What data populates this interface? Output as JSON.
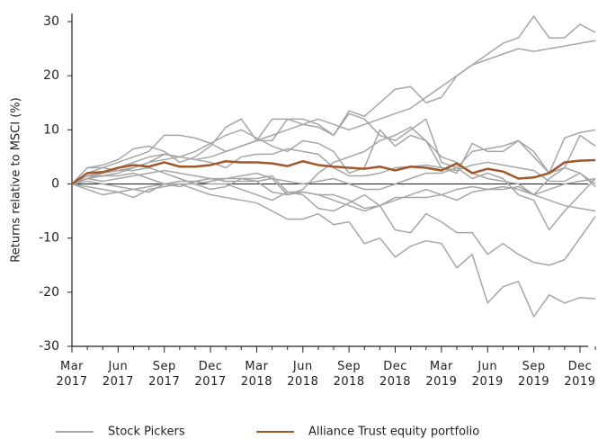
{
  "chart_data": {
    "type": "line",
    "y_label": "Returns relative to MSCI (%)",
    "categories": [
      "Mar\n2017",
      null,
      null,
      "Jun\n2017",
      null,
      null,
      "Sep\n2017",
      null,
      null,
      "Dec\n2017",
      null,
      null,
      "Mar\n2018",
      null,
      null,
      "Jun\n2018",
      null,
      null,
      "Sep\n2018",
      null,
      null,
      "Dec\n2018",
      null,
      null,
      "Mar\n2019",
      null,
      null,
      "Jun\n2019",
      null,
      null,
      "Sep\n2019",
      null,
      null,
      "Dec\n2019",
      null
    ],
    "ylim": [
      -30,
      31.5
    ],
    "yticks": [
      -30,
      -20,
      -10,
      0,
      10,
      20,
      30
    ],
    "series": [
      {
        "name": "Stock Pickers",
        "color": "#a6a6a6",
        "values": [
          [
            0,
            1,
            2,
            3,
            4,
            5,
            5.5,
            5,
            4.5,
            5,
            6,
            7,
            8,
            9,
            10,
            11,
            12,
            11,
            10,
            11,
            12,
            13,
            14,
            16,
            18,
            20,
            22,
            23,
            24,
            25,
            24.5,
            25,
            25.5,
            26,
            26.5
          ],
          [
            0,
            3,
            3.5,
            4.5,
            6.5,
            7,
            6,
            4,
            5,
            7,
            10.5,
            12,
            8,
            8,
            12,
            12,
            11,
            9,
            13.5,
            12.5,
            15,
            17.5,
            18,
            15,
            16,
            20,
            22,
            24,
            26,
            27,
            31,
            27,
            27,
            29.5,
            28
          ],
          [
            0,
            2,
            3,
            4,
            5,
            6,
            9,
            9,
            8.5,
            7.5,
            6,
            7,
            8,
            12,
            12,
            11,
            10.5,
            9,
            13,
            12,
            9,
            8,
            10,
            12,
            4,
            3,
            6,
            6.5,
            7,
            8,
            5,
            2,
            8.5,
            9.5,
            10
          ],
          [
            0,
            1.5,
            1.5,
            2,
            3,
            4,
            4.5,
            5,
            6,
            7.5,
            9,
            10,
            8.5,
            7,
            6,
            8,
            7.5,
            6,
            2,
            3,
            10,
            7,
            9,
            8,
            3,
            2,
            7.5,
            6,
            6,
            8,
            6,
            2,
            3,
            9,
            7
          ],
          [
            0,
            1,
            1.5,
            1.5,
            2,
            1,
            0,
            -0.5,
            0.5,
            1,
            1,
            1.5,
            2,
            1,
            -2,
            -1,
            2,
            4,
            5,
            6,
            8,
            9,
            10.5,
            8,
            5,
            4,
            2,
            1,
            0.5,
            0,
            -2,
            1,
            3,
            2,
            0
          ],
          [
            0,
            3,
            3,
            2.5,
            3,
            4,
            5.5,
            5,
            4.5,
            4,
            3,
            5,
            5.5,
            5.5,
            6.5,
            6,
            5.5,
            3,
            1.5,
            1.5,
            2,
            3,
            3.2,
            3.5,
            3,
            2.5,
            3.5,
            4,
            3.5,
            3,
            2.5,
            0.5,
            0.5,
            2,
            -0.5
          ],
          [
            0,
            -1,
            -2,
            -1.5,
            -2.5,
            -1,
            -0.5,
            0,
            0,
            0.5,
            1,
            1,
            1,
            1.5,
            -1.5,
            -1.5,
            -2,
            -2,
            -3,
            -4.5,
            -4,
            -2.5,
            -2.5,
            -2.5,
            -2,
            -1,
            -0.5,
            -1,
            -1,
            -0.5,
            -2,
            -3,
            -4,
            -4.5,
            -5
          ],
          [
            0,
            -0.5,
            -1,
            -1.5,
            -1,
            -0.5,
            0,
            0.5,
            0.5,
            0,
            0,
            -1,
            -2,
            -3,
            -1.5,
            -2,
            -4.5,
            -5,
            -3.5,
            -2,
            -4,
            -8.5,
            -9,
            -5.5,
            -7,
            -9,
            -9,
            -13,
            -11,
            -13,
            -14.5,
            -15,
            -14,
            -10,
            -6
          ],
          [
            0,
            0.5,
            0,
            -0.5,
            -1,
            -1.5,
            0,
            0,
            -1,
            -2,
            -2.5,
            -3,
            -3.5,
            -5,
            -6.5,
            -6.5,
            -5.5,
            -7.5,
            -7,
            -11,
            -10,
            -13.5,
            -11.5,
            -10.5,
            -11,
            -15.5,
            -13,
            -22,
            -19,
            -18,
            -24.5,
            -20.5,
            -22,
            -21,
            -21.2
          ],
          [
            0,
            1,
            0.5,
            1,
            1.5,
            2,
            2.5,
            2,
            1.5,
            1,
            0.5,
            0.5,
            0.5,
            -1.5,
            -2,
            -1.5,
            -2,
            -3,
            -4,
            -5,
            -4,
            -3,
            -2,
            -1,
            -2,
            -3,
            -1.5,
            -1,
            -0.5,
            -1,
            -2,
            -1,
            0,
            0.5,
            1
          ],
          [
            0,
            1.5,
            2,
            2.5,
            2.5,
            3,
            2,
            1,
            0,
            -1,
            -0.5,
            1,
            0.5,
            1,
            0.5,
            0,
            0.5,
            1,
            0,
            -1,
            -1,
            0,
            1,
            2,
            2,
            3,
            1,
            2,
            1,
            -2,
            -3,
            -8.5,
            -5,
            -2,
            1
          ]
        ]
      },
      {
        "name": "Alliance Trust equity portfolio",
        "color": "#a0582a",
        "values": [
          0,
          2,
          2.2,
          3,
          3.5,
          3.2,
          4,
          3.2,
          3.2,
          3.5,
          4.2,
          4,
          4,
          3.8,
          3.3,
          4.2,
          3.5,
          3.2,
          3,
          2.8,
          3.2,
          2.5,
          3.2,
          3,
          2.5,
          3.8,
          2,
          2.8,
          2.3,
          1,
          1.2,
          2,
          4,
          4.3,
          4.4
        ]
      }
    ]
  }
}
